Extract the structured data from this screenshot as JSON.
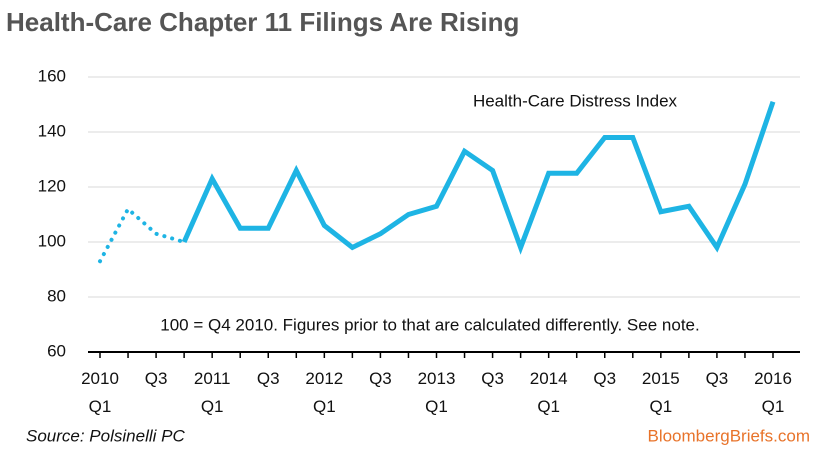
{
  "chart_data": {
    "type": "line",
    "title": "Health-Care Chapter 11 Filings Are Rising",
    "annotations": [
      "Health-Care Distress Index",
      "100 = Q4 2010. Figures prior to that are calculated differently. See note."
    ],
    "source": "Source: Polsinelli PC",
    "brand": "BloombergBriefs.com",
    "categories": [
      "2010 Q1",
      null,
      "Q3",
      null,
      "2011 Q1",
      null,
      "Q3",
      null,
      "2012 Q1",
      null,
      "Q3",
      null,
      "2013 Q1",
      null,
      "Q3",
      null,
      "2014 Q1",
      null,
      "Q3",
      null,
      "2015 Q1",
      null,
      "Q3",
      null,
      "2016 Q1"
    ],
    "series": [
      {
        "color": "#1eb4e4",
        "dash": "dotted",
        "values": [
          93,
          112,
          103,
          100,
          null,
          null,
          null,
          null,
          null,
          null,
          null,
          null,
          null,
          null,
          null,
          null,
          null,
          null,
          null,
          null,
          null,
          null,
          null,
          null,
          null
        ]
      },
      {
        "color": "#1eb4e4",
        "dash": "solid",
        "values": [
          null,
          null,
          null,
          100,
          123,
          105,
          105,
          126,
          106,
          98,
          103,
          110,
          113,
          133,
          126,
          98,
          125,
          125,
          138,
          138,
          111,
          113,
          98,
          121,
          151
        ]
      }
    ],
    "ylim": [
      60,
      160
    ],
    "yticks": [
      60,
      80,
      100,
      120,
      140,
      160
    ],
    "grid": true
  }
}
